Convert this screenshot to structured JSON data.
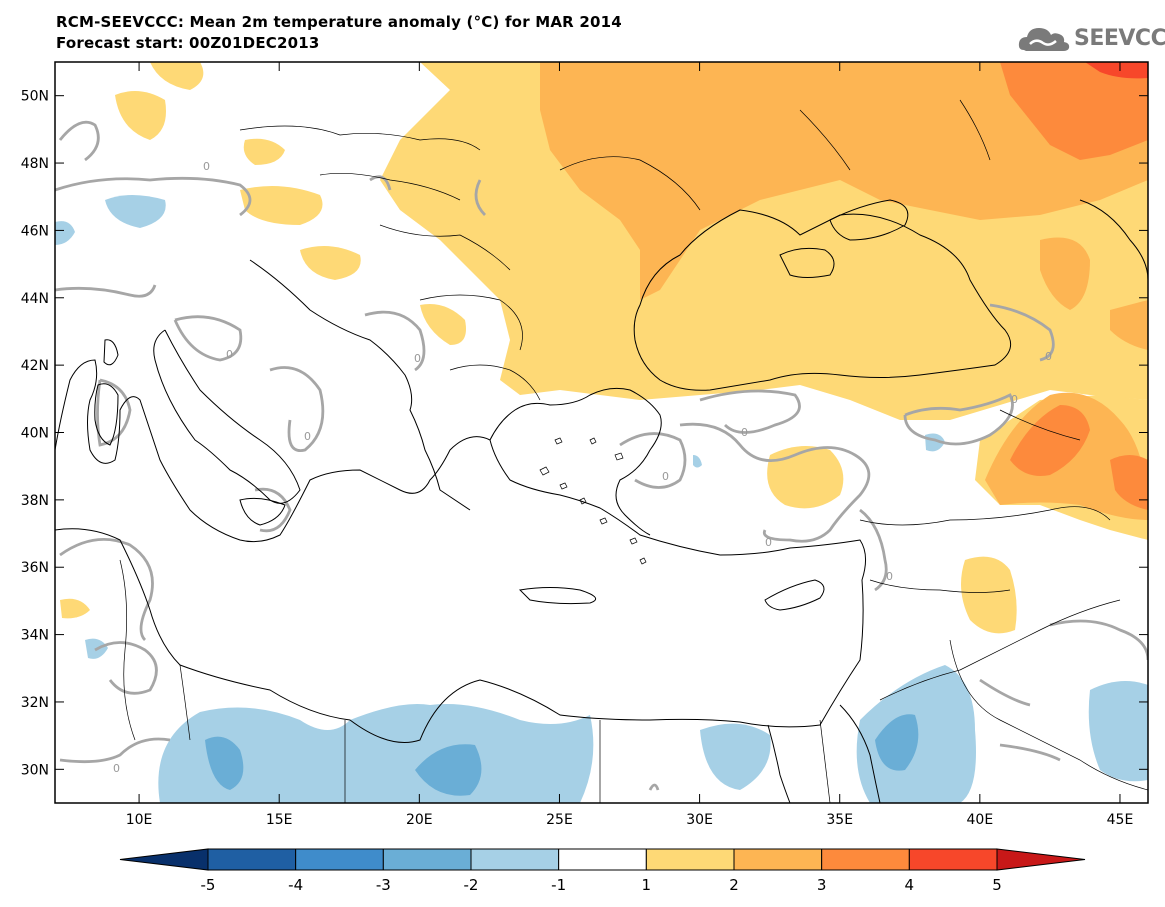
{
  "header": {
    "title": "RCM-SEEVCCC: Mean 2m temperature anomaly (°C) for MAR 2014",
    "subtitle": "Forecast start: 00Z01DEC2013"
  },
  "logo": {
    "text": "SEEVCCC",
    "icon": "cloud-icon"
  },
  "axes": {
    "lat_ticks": [
      "50N",
      "48N",
      "46N",
      "44N",
      "42N",
      "40N",
      "38N",
      "36N",
      "34N",
      "32N",
      "30N"
    ],
    "lon_ticks": [
      "10E",
      "15E",
      "20E",
      "25E",
      "30E",
      "35E",
      "40E",
      "45E"
    ]
  },
  "contour_label": "0",
  "colorbar": {
    "levels": [
      "-5",
      "-4",
      "-3",
      "-2",
      "-1",
      "1",
      "2",
      "3",
      "4",
      "5"
    ],
    "colors": [
      "#08306b",
      "#1f5fa3",
      "#3f8ccb",
      "#6aaed6",
      "#a6d0e6",
      "#ffffff",
      "#fed976",
      "#fdb553",
      "#fd8a3c",
      "#f7472a",
      "#c81818"
    ]
  },
  "chart_data": {
    "type": "heatmap",
    "title": "RCM-SEEVCCC: Mean 2m temperature anomaly (°C) for MAR 2014",
    "subtitle": "Forecast start: 00Z01DEC2013",
    "x_range": [
      7,
      46
    ],
    "y_range": [
      29,
      51
    ],
    "xlabel": "",
    "ylabel": "",
    "units": "°C",
    "levels": [
      -5,
      -4,
      -3,
      -2,
      -1,
      1,
      2,
      3,
      4,
      5
    ],
    "colors": [
      "#08306b",
      "#1f5fa3",
      "#3f8ccb",
      "#6aaed6",
      "#a6d0e6",
      "#ffffff",
      "#fed976",
      "#fdb553",
      "#fd8a3c",
      "#f7472a",
      "#c81818"
    ],
    "zero_contour": true
  }
}
